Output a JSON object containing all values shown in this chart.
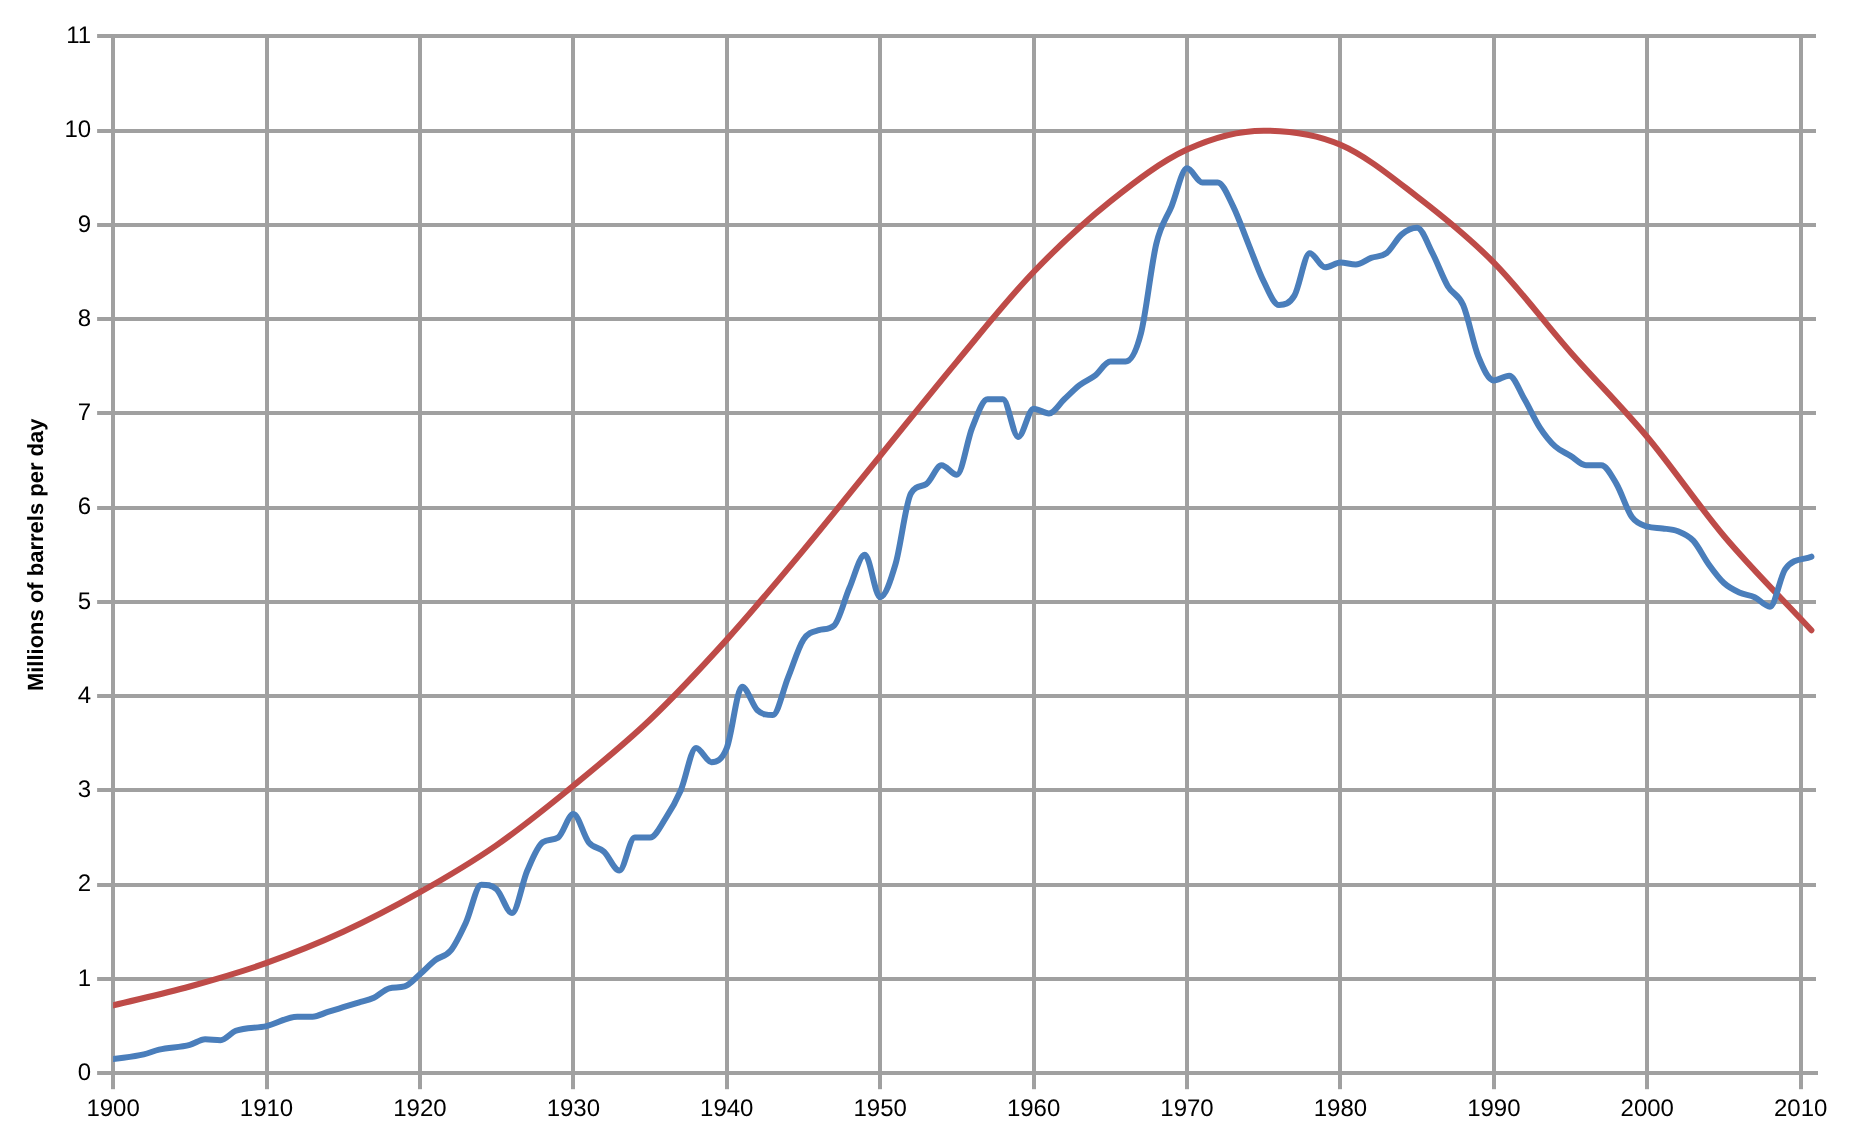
{
  "chart_data": {
    "type": "line",
    "ylabel": "Millions of barrels per day",
    "xlim": [
      1900,
      2011
    ],
    "xticks": [
      1900,
      1910,
      1920,
      1930,
      1940,
      1950,
      1960,
      1970,
      1980,
      1990,
      2000,
      2010
    ],
    "ylim": [
      0,
      11
    ],
    "yticks": [
      0,
      1,
      2,
      3,
      4,
      5,
      6,
      7,
      8,
      9,
      10,
      11
    ],
    "grid": true,
    "legend": false,
    "marker": "none",
    "line_style": "solid",
    "series": [
      {
        "color": "#4a7ebb",
        "x": [
          1900,
          1902,
          1903,
          1905,
          1906,
          1907,
          1908,
          1910,
          1912,
          1913,
          1914,
          1915,
          1916,
          1917,
          1918,
          1919,
          1920,
          1921,
          1922,
          1923,
          1924,
          1925,
          1926,
          1927,
          1928,
          1929,
          1930,
          1931,
          1932,
          1933,
          1934,
          1935,
          1936,
          1937,
          1938,
          1939,
          1940,
          1941,
          1942,
          1943,
          1944,
          1945,
          1946,
          1947,
          1948,
          1949,
          1950,
          1951,
          1952,
          1953,
          1954,
          1955,
          1956,
          1957,
          1958,
          1959,
          1960,
          1961,
          1962,
          1963,
          1964,
          1965,
          1966,
          1967,
          1968,
          1969,
          1970,
          1971,
          1972,
          1973,
          1974,
          1975,
          1976,
          1977,
          1978,
          1979,
          1980,
          1981,
          1982,
          1983,
          1984,
          1985,
          1986,
          1987,
          1988,
          1989,
          1990,
          1991,
          1992,
          1993,
          1994,
          1995,
          1996,
          1997,
          1998,
          1999,
          2000,
          2001,
          2002,
          2003,
          2004,
          2005,
          2006,
          2007,
          2008,
          2009,
          2010.7
        ],
        "values": [
          0.15,
          0.2,
          0.25,
          0.3,
          0.36,
          0.35,
          0.45,
          0.5,
          0.6,
          0.6,
          0.65,
          0.7,
          0.75,
          0.8,
          0.9,
          0.92,
          1.05,
          1.2,
          1.3,
          1.6,
          2.0,
          1.95,
          1.7,
          2.15,
          2.45,
          2.5,
          2.75,
          2.45,
          2.35,
          2.15,
          2.5,
          2.5,
          2.7,
          3.0,
          3.45,
          3.3,
          3.45,
          4.1,
          3.85,
          3.8,
          4.2,
          4.6,
          4.7,
          4.75,
          5.15,
          5.5,
          5.05,
          5.4,
          6.15,
          6.25,
          6.45,
          6.35,
          6.85,
          7.15,
          7.15,
          6.75,
          7.05,
          7.0,
          7.15,
          7.3,
          7.4,
          7.55,
          7.55,
          7.85,
          8.8,
          9.2,
          9.6,
          9.45,
          9.45,
          9.2,
          8.8,
          8.4,
          8.15,
          8.25,
          8.7,
          8.55,
          8.6,
          8.58,
          8.65,
          8.7,
          8.9,
          8.97,
          8.7,
          8.35,
          8.15,
          7.6,
          7.35,
          7.4,
          7.15,
          6.85,
          6.65,
          6.55,
          6.45,
          6.45,
          6.25,
          5.9,
          5.8,
          5.78,
          5.75,
          5.65,
          5.4,
          5.2,
          5.1,
          5.05,
          4.95,
          5.35,
          5.48
        ]
      },
      {
        "color": "#be4b48",
        "x": [
          1900,
          1905,
          1910,
          1915,
          1920,
          1925,
          1930,
          1935,
          1940,
          1945,
          1950,
          1955,
          1960,
          1965,
          1970,
          1975,
          1980,
          1985,
          1990,
          1995,
          2000,
          2005,
          2010.7
        ],
        "values": [
          0.72,
          0.92,
          1.17,
          1.5,
          1.92,
          2.42,
          3.05,
          3.75,
          4.6,
          5.55,
          6.55,
          7.55,
          8.5,
          9.25,
          9.8,
          10.0,
          9.85,
          9.3,
          8.6,
          7.65,
          6.75,
          5.7,
          4.7
        ]
      }
    ]
  }
}
